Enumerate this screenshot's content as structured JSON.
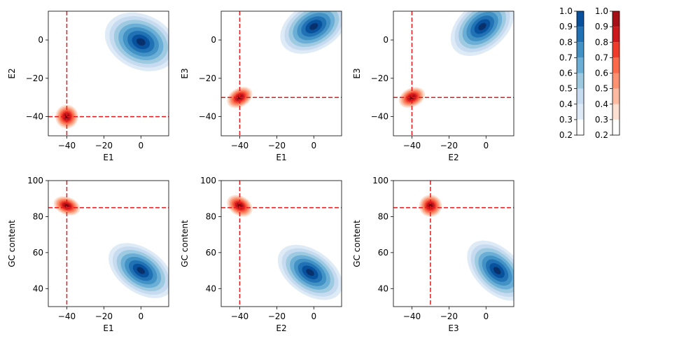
{
  "colors": {
    "blues": [
      "#ffffff",
      "#deebf7",
      "#c6dbef",
      "#9ecae1",
      "#6baed6",
      "#4292c6",
      "#2171b5",
      "#08519c",
      "#08306b"
    ],
    "reds": [
      "#ffffff",
      "#fee0d2",
      "#fcbba1",
      "#fc9272",
      "#fb6a4a",
      "#ef3b2c",
      "#cb181d",
      "#a50f15",
      "#67000d"
    ],
    "reference_line": "#e41a1c"
  },
  "chart_data": [
    {
      "type": "contour",
      "xlabel": "E1",
      "ylabel": "E2",
      "xlim": [
        -50,
        15
      ],
      "ylim": [
        -50,
        15
      ],
      "xticks": [
        "−40",
        "−20",
        "0"
      ],
      "yticks": [
        "−40",
        "−20",
        "0"
      ],
      "xtick_values": [
        -40,
        -20,
        0
      ],
      "ytick_values": [
        -40,
        -20,
        0
      ],
      "blue_cluster": {
        "center": [
          0,
          -1
        ],
        "sx": 6,
        "sy": 8,
        "angle": 65
      },
      "red_cluster": {
        "center": [
          -40,
          -40
        ],
        "sx": 2.5,
        "sy": 2.5,
        "angle": 0
      },
      "reference_lines": {
        "x": -40,
        "y": -40
      }
    },
    {
      "type": "contour",
      "xlabel": "E1",
      "ylabel": "E3",
      "xlim": [
        -50,
        15
      ],
      "ylim": [
        -50,
        15
      ],
      "xticks": [
        "−40",
        "−20",
        "0"
      ],
      "yticks": [
        "−40",
        "−20",
        "0"
      ],
      "xtick_values": [
        -40,
        -20,
        0
      ],
      "ytick_values": [
        -40,
        -20,
        0
      ],
      "blue_cluster": {
        "center": [
          0,
          7
        ],
        "sx": 8,
        "sy": 5,
        "angle": 30
      },
      "red_cluster": {
        "center": [
          -40,
          -30
        ],
        "sx": 3,
        "sy": 2,
        "angle": 30
      },
      "reference_lines": {
        "x": -40,
        "y": -30
      }
    },
    {
      "type": "contour",
      "xlabel": "E2",
      "ylabel": "E3",
      "xlim": [
        -50,
        15
      ],
      "ylim": [
        -50,
        15
      ],
      "xticks": [
        "−40",
        "−20",
        "0"
      ],
      "yticks": [
        "−40",
        "−20",
        "0"
      ],
      "xtick_values": [
        -40,
        -20,
        0
      ],
      "ytick_values": [
        -40,
        -20,
        0
      ],
      "blue_cluster": {
        "center": [
          -2,
          7
        ],
        "sx": 8,
        "sy": 5,
        "angle": 40
      },
      "red_cluster": {
        "center": [
          -40,
          -30
        ],
        "sx": 3,
        "sy": 2,
        "angle": 25
      },
      "reference_lines": {
        "x": -40,
        "y": -30
      }
    },
    {
      "type": "contour",
      "xlabel": "E1",
      "ylabel": "GC content",
      "xlim": [
        -50,
        15
      ],
      "ylim": [
        30,
        100
      ],
      "xticks": [
        "−40",
        "−20",
        "0"
      ],
      "yticks": [
        "40",
        "60",
        "80",
        "100"
      ],
      "xtick_values": [
        -40,
        -20,
        0
      ],
      "ytick_values": [
        40,
        60,
        80,
        100
      ],
      "blue_cluster": {
        "center": [
          0,
          50
        ],
        "sx": 8,
        "sy": 5,
        "angle": -35
      },
      "red_cluster": {
        "center": [
          -40,
          86
        ],
        "sx": 3,
        "sy": 2,
        "angle": -20
      },
      "reference_lines": {
        "x": -40,
        "y": 85
      }
    },
    {
      "type": "contour",
      "xlabel": "E2",
      "ylabel": "GC content",
      "xlim": [
        -50,
        15
      ],
      "ylim": [
        30,
        100
      ],
      "xticks": [
        "−40",
        "−20",
        "0"
      ],
      "yticks": [
        "40",
        "60",
        "80",
        "100"
      ],
      "xtick_values": [
        -40,
        -20,
        0
      ],
      "ytick_values": [
        40,
        60,
        80,
        100
      ],
      "blue_cluster": {
        "center": [
          -2,
          49
        ],
        "sx": 8,
        "sy": 5,
        "angle": -35
      },
      "red_cluster": {
        "center": [
          -40,
          86
        ],
        "sx": 3,
        "sy": 2.2,
        "angle": -30
      },
      "reference_lines": {
        "x": -40,
        "y": 85
      }
    },
    {
      "type": "contour",
      "xlabel": "E3",
      "ylabel": "GC content",
      "xlim": [
        -50,
        15
      ],
      "ylim": [
        30,
        100
      ],
      "xticks": [
        "−40",
        "−20",
        "0"
      ],
      "yticks": [
        "40",
        "60",
        "80",
        "100"
      ],
      "xtick_values": [
        -40,
        -20,
        0
      ],
      "ytick_values": [
        40,
        60,
        80,
        100
      ],
      "blue_cluster": {
        "center": [
          6,
          50
        ],
        "sx": 8,
        "sy": 5,
        "angle": -45
      },
      "red_cluster": {
        "center": [
          -30,
          86
        ],
        "sx": 2.5,
        "sy": 2.5,
        "angle": 0
      },
      "reference_lines": {
        "x": -30,
        "y": 85
      }
    }
  ],
  "colorbars": [
    {
      "name": "blues",
      "ticks": [
        "0.2",
        "0.3",
        "0.4",
        "0.5",
        "0.6",
        "0.7",
        "0.8",
        "0.9",
        "1.0"
      ],
      "levels": [
        0.2,
        0.3,
        0.4,
        0.5,
        0.6,
        0.7,
        0.8,
        0.9,
        1.0
      ]
    },
    {
      "name": "reds",
      "ticks": [
        "0.2",
        "0.3",
        "0.4",
        "0.5",
        "0.6",
        "0.7",
        "0.8",
        "0.9",
        "1.0"
      ],
      "levels": [
        0.2,
        0.3,
        0.4,
        0.5,
        0.6,
        0.7,
        0.8,
        0.9,
        1.0
      ]
    }
  ]
}
